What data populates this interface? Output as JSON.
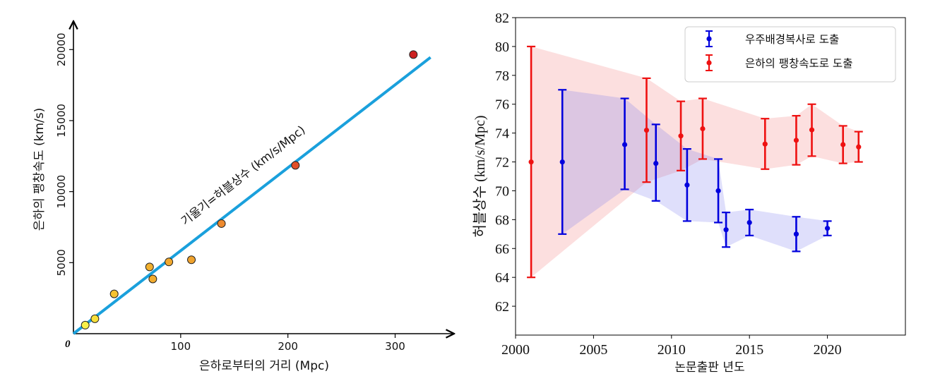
{
  "chart_data": [
    {
      "type": "scatter",
      "xlabel": "은하로부터의 거리 (Mpc)",
      "ylabel": "은하의 팽창속도 (km/s)",
      "annotation": "기울기=허블상수 (km/s/Mpc)",
      "origin_label": "0",
      "xlim": [
        0,
        355
      ],
      "ylim": [
        0,
        22000
      ],
      "xticks": [
        100,
        200,
        300
      ],
      "yticks": [
        5000,
        10000,
        15000,
        20000
      ],
      "points": [
        {
          "x": 11,
          "y": 600,
          "color": "#f7f04a"
        },
        {
          "x": 20,
          "y": 1050,
          "color": "#f7e03a"
        },
        {
          "x": 38,
          "y": 2800,
          "color": "#f5c230"
        },
        {
          "x": 71,
          "y": 4700,
          "color": "#f2b02e"
        },
        {
          "x": 74,
          "y": 3850,
          "color": "#f2ac2e"
        },
        {
          "x": 89,
          "y": 5050,
          "color": "#f0a82e"
        },
        {
          "x": 110,
          "y": 5200,
          "color": "#efa22d"
        },
        {
          "x": 138,
          "y": 7750,
          "color": "#ee8a2e"
        },
        {
          "x": 207,
          "y": 11850,
          "color": "#e2502a"
        },
        {
          "x": 317,
          "y": 19650,
          "color": "#cc2222"
        }
      ],
      "fit_line": {
        "x": [
          0,
          333
        ],
        "y": [
          0,
          19450
        ],
        "color": "#1aa0dc"
      }
    },
    {
      "type": "line",
      "xlabel": "논문출판 년도",
      "ylabel": "허블상수 (km/s/Mpc)",
      "xlim": [
        2000,
        2025
      ],
      "ylim": [
        60,
        82
      ],
      "xticks": [
        2000,
        2005,
        2010,
        2015,
        2020
      ],
      "yticks": [
        62,
        64,
        66,
        68,
        70,
        72,
        74,
        76,
        78,
        80,
        82
      ],
      "legend_position": "top-right",
      "series": [
        {
          "name": "우주배경복사로 도출",
          "color": "#0000dd",
          "fill": "rgba(110,110,235,0.22)",
          "points": [
            {
              "x": 2003,
              "y": 72.0,
              "lo": 67.0,
              "hi": 77.0
            },
            {
              "x": 2007,
              "y": 73.2,
              "lo": 70.1,
              "hi": 76.4
            },
            {
              "x": 2009,
              "y": 71.9,
              "lo": 69.3,
              "hi": 74.6
            },
            {
              "x": 2011,
              "y": 70.4,
              "lo": 67.9,
              "hi": 72.9
            },
            {
              "x": 2013,
              "y": 70.0,
              "lo": 67.8,
              "hi": 72.2
            },
            {
              "x": 2013.5,
              "y": 67.3,
              "lo": 66.1,
              "hi": 68.5
            },
            {
              "x": 2015,
              "y": 67.8,
              "lo": 66.9,
              "hi": 68.7
            },
            {
              "x": 2018,
              "y": 67.0,
              "lo": 65.8,
              "hi": 68.2
            },
            {
              "x": 2020,
              "y": 67.4,
              "lo": 66.9,
              "hi": 67.9
            }
          ]
        },
        {
          "name": "은하의 팽창속도로 도출",
          "color": "#ee1111",
          "fill": "rgba(240,110,110,0.22)",
          "points": [
            {
              "x": 2001,
              "y": 72.0,
              "lo": 64.0,
              "hi": 80.0
            },
            {
              "x": 2008.4,
              "y": 74.2,
              "lo": 70.6,
              "hi": 77.8
            },
            {
              "x": 2010.6,
              "y": 73.8,
              "lo": 71.4,
              "hi": 76.2
            },
            {
              "x": 2012,
              "y": 74.3,
              "lo": 72.2,
              "hi": 76.4
            },
            {
              "x": 2016,
              "y": 73.24,
              "lo": 71.5,
              "hi": 75.0
            },
            {
              "x": 2018,
              "y": 73.5,
              "lo": 71.8,
              "hi": 75.2
            },
            {
              "x": 2019,
              "y": 74.22,
              "lo": 72.4,
              "hi": 76.0
            },
            {
              "x": 2021,
              "y": 73.2,
              "lo": 71.9,
              "hi": 74.5
            },
            {
              "x": 2022,
              "y": 73.04,
              "lo": 72.0,
              "hi": 74.1
            }
          ]
        }
      ]
    }
  ]
}
